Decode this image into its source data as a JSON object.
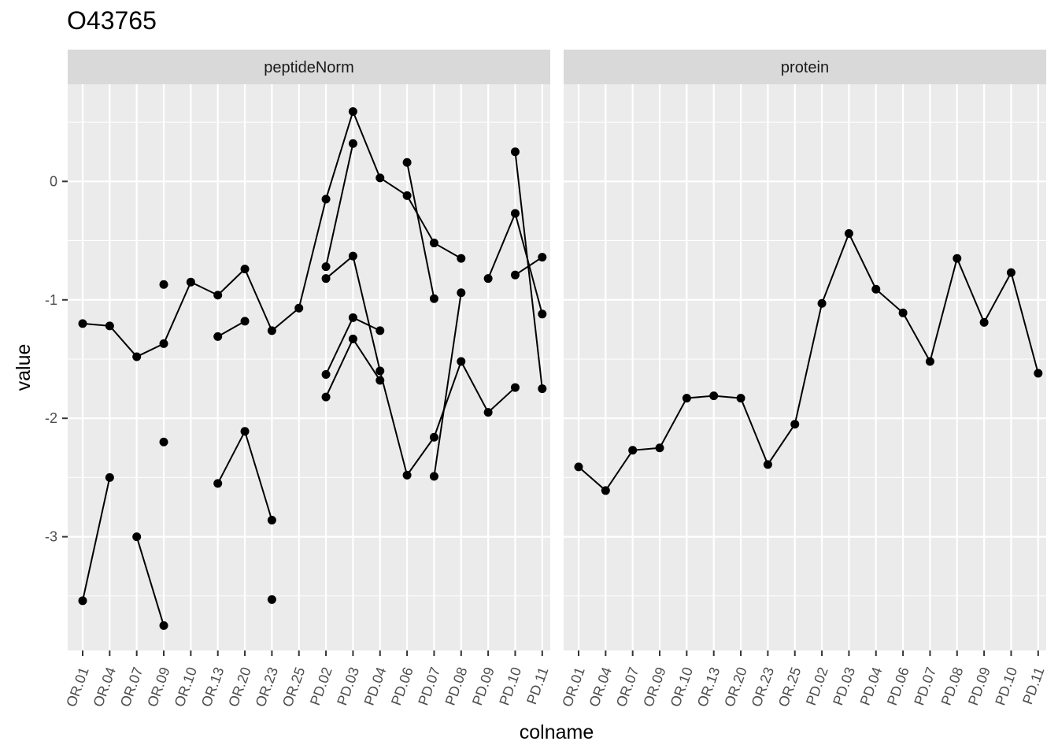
{
  "chart_data": {
    "type": "line",
    "title": "O43765",
    "xlabel": "colname",
    "ylabel": "value",
    "ylim": [
      -3.96,
      0.82
    ],
    "yticks": [
      0,
      -1,
      -2,
      -3
    ],
    "ytick_labels": [
      "0",
      "-1",
      "-2",
      "-3"
    ],
    "grid": true,
    "categories": [
      "OR.01",
      "OR.04",
      "OR.07",
      "OR.09",
      "OR.10",
      "OR.13",
      "OR.20",
      "OR.23",
      "OR.25",
      "PD.02",
      "PD.03",
      "PD.04",
      "PD.06",
      "PD.07",
      "PD.08",
      "PD.09",
      "PD.10",
      "PD.11"
    ],
    "panels": [
      {
        "label": "peptideNorm",
        "series": [
          {
            "values": [
              -1.2,
              -1.22,
              -1.48,
              -1.37,
              -0.85,
              -0.96,
              -0.74,
              -1.26,
              -1.07,
              -0.15,
              0.59,
              0.03,
              -0.12,
              -0.52,
              -0.65,
              null,
              null,
              null
            ]
          },
          {
            "values": [
              null,
              null,
              null,
              null,
              null,
              -1.31,
              -1.18,
              null,
              null,
              -0.72,
              0.32,
              null,
              0.16,
              -0.99,
              null,
              -0.82,
              -0.27,
              -1.12
            ]
          },
          {
            "values": [
              null,
              null,
              null,
              null,
              null,
              null,
              null,
              null,
              null,
              -0.82,
              -0.63,
              -1.6,
              -2.48,
              -2.16,
              -1.52,
              -1.95,
              -1.74,
              null
            ]
          },
          {
            "values": [
              null,
              null,
              null,
              null,
              null,
              null,
              null,
              null,
              null,
              -1.63,
              -1.15,
              -1.26,
              null,
              -2.49,
              -0.94,
              null,
              0.25,
              -1.75
            ]
          },
          {
            "values": [
              null,
              null,
              null,
              null,
              null,
              null,
              null,
              null,
              null,
              -1.82,
              -1.33,
              -1.68,
              null,
              null,
              null,
              null,
              -0.79,
              -0.64
            ]
          },
          {
            "values": [
              null,
              null,
              -3.0,
              -3.75,
              null,
              null,
              null,
              null,
              null,
              null,
              null,
              null,
              null,
              null,
              null,
              null,
              null,
              null
            ]
          },
          {
            "values": [
              -3.54,
              -2.5,
              null,
              -0.87,
              null,
              -2.55,
              -2.11,
              -2.86,
              null,
              null,
              null,
              null,
              null,
              null,
              null,
              null,
              null,
              null
            ]
          },
          {
            "values": [
              null,
              null,
              null,
              -2.2,
              null,
              null,
              null,
              -3.53,
              null,
              null,
              null,
              null,
              null,
              null,
              null,
              null,
              null,
              null
            ]
          }
        ]
      },
      {
        "label": "protein",
        "series": [
          {
            "values": [
              -2.41,
              -2.61,
              -2.27,
              -2.25,
              -1.83,
              -1.81,
              -1.83,
              -2.39,
              -2.05,
              -1.03,
              -0.44,
              -0.91,
              -1.11,
              -1.52,
              -0.65,
              -1.19,
              -0.77,
              -1.62
            ]
          }
        ]
      }
    ]
  }
}
